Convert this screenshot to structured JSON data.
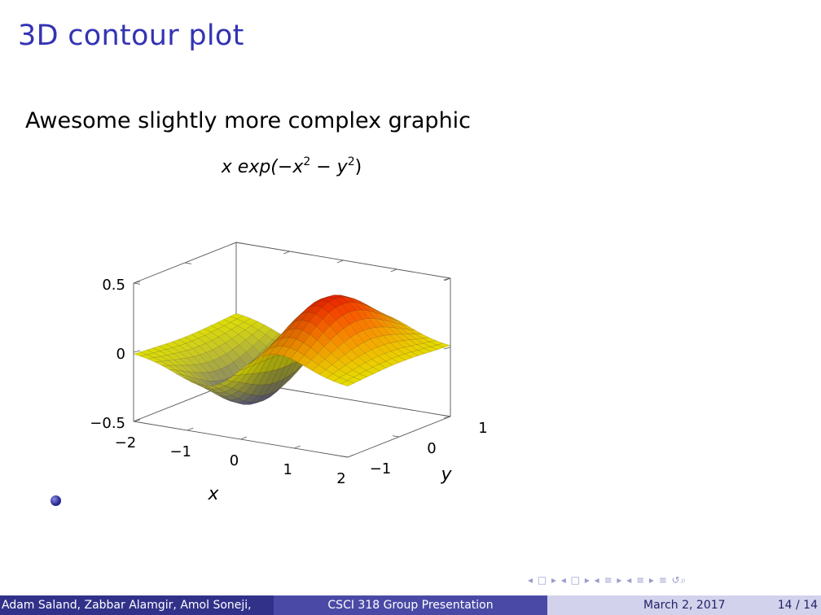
{
  "slide": {
    "title": "3D contour plot",
    "subtitle": "Awesome slightly more complex graphic"
  },
  "chart_data": {
    "type": "surface",
    "function": "x exp(-x^2 - y^2)",
    "title_parts": [
      "x exp(−x",
      "2",
      " − y",
      "2",
      ")"
    ],
    "x_range": [
      -2,
      2
    ],
    "y_range": [
      -1,
      1
    ],
    "z_range": [
      -0.5,
      0.5
    ],
    "x_ticks": [
      "−2",
      "−1",
      "0",
      "1",
      "2"
    ],
    "y_ticks": [
      "−1",
      "0",
      "1"
    ],
    "z_ticks": [
      "−0.5",
      "0",
      "0.5"
    ],
    "xlabel": "x",
    "ylabel": "y",
    "colormap": [
      "#3838b0",
      "#ffff00",
      "#ff0000"
    ]
  },
  "footer": {
    "authors": "Adam Saland, Zabbar Alamgir, Amol Soneji,",
    "presentation": "CSCI 318 Group Presentation",
    "date": "March 2, 2017",
    "page": "14 / 14"
  },
  "navigation": {
    "symbols": "◂ □ ▸  ◂ □ ▸  ◂ ≡ ▸  ◂ ≡ ▸   ≡   ↺⌕"
  }
}
